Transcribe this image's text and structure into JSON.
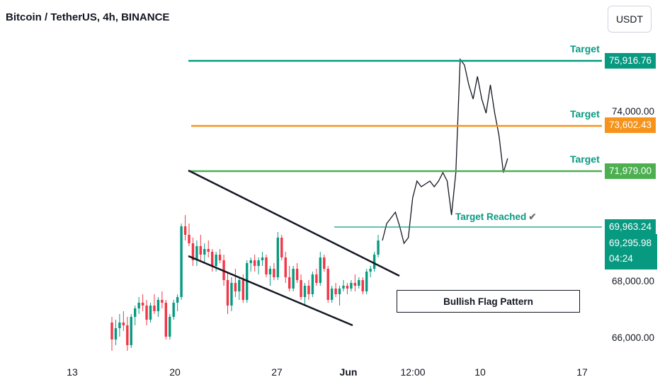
{
  "header": {
    "title": "Bitcoin / TetherUS, 4h, BINANCE",
    "currency_button": "USDT"
  },
  "chart_data": {
    "type": "candlestick",
    "title": "Bitcoin / TetherUS, 4h, BINANCE",
    "x_tick_labels": [
      "13",
      "20",
      "27",
      "Jun",
      "12:00",
      "10",
      "17"
    ],
    "y_tick_labels": [
      "74,000.00",
      "68,000.00",
      "66,000.00"
    ],
    "ylim": [
      65500,
      77000
    ],
    "candles": [
      [
        66600,
        66800,
        65600,
        66000
      ],
      [
        66000,
        66700,
        65800,
        66400
      ],
      [
        66400,
        66900,
        66100,
        66600
      ],
      [
        66600,
        67000,
        66300,
        66500
      ],
      [
        66500,
        66800,
        65600,
        65800
      ],
      [
        65800,
        66900,
        65700,
        66800
      ],
      [
        66800,
        67200,
        66500,
        67100
      ],
      [
        67100,
        67500,
        66900,
        67300
      ],
      [
        67300,
        67600,
        67000,
        67200
      ],
      [
        67200,
        67400,
        66500,
        66700
      ],
      [
        66700,
        67300,
        66600,
        67200
      ],
      [
        67200,
        67600,
        66900,
        67000
      ],
      [
        67000,
        67500,
        66800,
        67400
      ],
      [
        67400,
        67700,
        67100,
        67300
      ],
      [
        67300,
        67400,
        66000,
        66100
      ],
      [
        66100,
        66900,
        66000,
        66800
      ],
      [
        66800,
        67400,
        66700,
        67300
      ],
      [
        67300,
        67600,
        67000,
        67500
      ],
      [
        67500,
        70100,
        67400,
        70000
      ],
      [
        70000,
        70400,
        69500,
        69700
      ],
      [
        69700,
        70100,
        69300,
        69400
      ],
      [
        69400,
        69600,
        68600,
        68800
      ],
      [
        68800,
        69500,
        68600,
        69300
      ],
      [
        69300,
        69700,
        68800,
        69000
      ],
      [
        69000,
        69400,
        68700,
        69200
      ],
      [
        69200,
        69500,
        68900,
        69100
      ],
      [
        69100,
        69200,
        68400,
        68600
      ],
      [
        68600,
        69100,
        68400,
        69000
      ],
      [
        69000,
        69200,
        68700,
        68800
      ],
      [
        68800,
        69000,
        67900,
        68100
      ],
      [
        68100,
        68400,
        66900,
        67200
      ],
      [
        67200,
        68200,
        67000,
        68000
      ],
      [
        68000,
        68500,
        67500,
        67700
      ],
      [
        67700,
        68200,
        67400,
        68100
      ],
      [
        68100,
        68300,
        67300,
        67400
      ],
      [
        67400,
        68800,
        67300,
        68700
      ],
      [
        68700,
        68900,
        68400,
        68800
      ],
      [
        68800,
        69000,
        68400,
        68600
      ],
      [
        68600,
        68900,
        68300,
        68800
      ],
      [
        68800,
        69100,
        68600,
        68900
      ],
      [
        68900,
        69000,
        68200,
        68300
      ],
      [
        68300,
        68600,
        67900,
        68500
      ],
      [
        68500,
        68700,
        68100,
        68200
      ],
      [
        68200,
        69800,
        68100,
        69600
      ],
      [
        69600,
        69700,
        68800,
        68900
      ],
      [
        68900,
        69100,
        68000,
        68200
      ],
      [
        68200,
        68600,
        67700,
        67800
      ],
      [
        67800,
        68600,
        67700,
        68500
      ],
      [
        68500,
        68700,
        68000,
        68100
      ],
      [
        68100,
        68300,
        67400,
        67500
      ],
      [
        67500,
        68000,
        67200,
        67900
      ],
      [
        67900,
        68100,
        67400,
        67600
      ],
      [
        67600,
        68400,
        67500,
        68300
      ],
      [
        68300,
        68500,
        67900,
        68000
      ],
      [
        68000,
        69100,
        67900,
        68900
      ],
      [
        68900,
        69000,
        68400,
        68500
      ],
      [
        68500,
        68600,
        67300,
        67400
      ],
      [
        67400,
        67900,
        67300,
        67800
      ],
      [
        67800,
        68000,
        67500,
        67600
      ],
      [
        67600,
        67900,
        67200,
        67800
      ],
      [
        67800,
        68100,
        67700,
        67900
      ],
      [
        67900,
        68000,
        67600,
        67800
      ],
      [
        67800,
        68100,
        67700,
        68000
      ],
      [
        68000,
        68300,
        67700,
        67900
      ],
      [
        67900,
        68200,
        67800,
        68100
      ],
      [
        68100,
        68200,
        67600,
        67700
      ],
      [
        67700,
        68500,
        67600,
        68400
      ],
      [
        68400,
        68600,
        68200,
        68500
      ],
      [
        68500,
        69100,
        68400,
        69000
      ],
      [
        69000,
        69700,
        68900,
        69500
      ]
    ],
    "projection_path": [
      69500,
      70100,
      70300,
      70500,
      70000,
      69400,
      69600,
      71000,
      71600,
      71400,
      71500,
      71600,
      71400,
      71600,
      71900,
      71600,
      70400,
      71900,
      75900,
      75700,
      75000,
      74500,
      75300,
      74500,
      74000,
      75000,
      74000,
      73200,
      71900,
      72400
    ],
    "annotations": {
      "targets": [
        {
          "label": "Target",
          "price": "75,916.76",
          "color": "#089981"
        },
        {
          "label": "Target",
          "price": "73,602.43",
          "color": "#f7931a"
        },
        {
          "label": "Target",
          "price": "71,979.00",
          "color": "#4caf50"
        }
      ],
      "reached": {
        "label": "Target Reached",
        "price": "69,963.24",
        "check": "✔"
      },
      "pattern_label": "Bullish Flag Pattern",
      "last_price": "69,295.98",
      "countdown": "04:24"
    }
  }
}
